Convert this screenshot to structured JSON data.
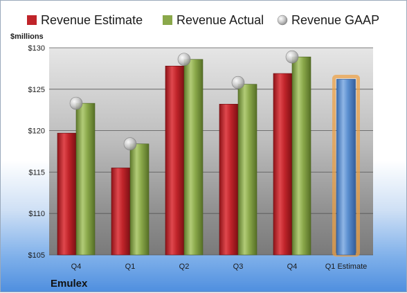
{
  "company": "Emulex",
  "chart_data": {
    "type": "bar",
    "ylabel": "$millions",
    "ylim": [
      105,
      130
    ],
    "yticks": [
      105,
      110,
      115,
      120,
      125,
      130
    ],
    "ytick_labels": [
      "$105",
      "$110",
      "$115",
      "$120",
      "$125",
      "$130"
    ],
    "categories": [
      "Q4",
      "Q1",
      "Q2",
      "Q3",
      "Q4",
      "Q1 Estimate"
    ],
    "grid": true,
    "legend_position": "top",
    "series": [
      {
        "name": "Revenue Estimate",
        "kind": "bar",
        "color": "#c0242a",
        "values": [
          119.7,
          115.5,
          127.8,
          123.2,
          126.9,
          null
        ]
      },
      {
        "name": "Revenue Actual",
        "kind": "bar",
        "color": "#8aa84a",
        "values": [
          123.3,
          118.4,
          128.6,
          125.6,
          128.9,
          null
        ]
      },
      {
        "name": "Revenue GAAP",
        "kind": "marker",
        "color": "#c8c8c8",
        "values": [
          123.3,
          118.4,
          128.6,
          125.8,
          128.9,
          null
        ]
      },
      {
        "name": "Q1 Estimate",
        "kind": "bar",
        "color": "#5b8fd0",
        "values": [
          null,
          null,
          null,
          null,
          null,
          126.2
        ]
      }
    ]
  }
}
